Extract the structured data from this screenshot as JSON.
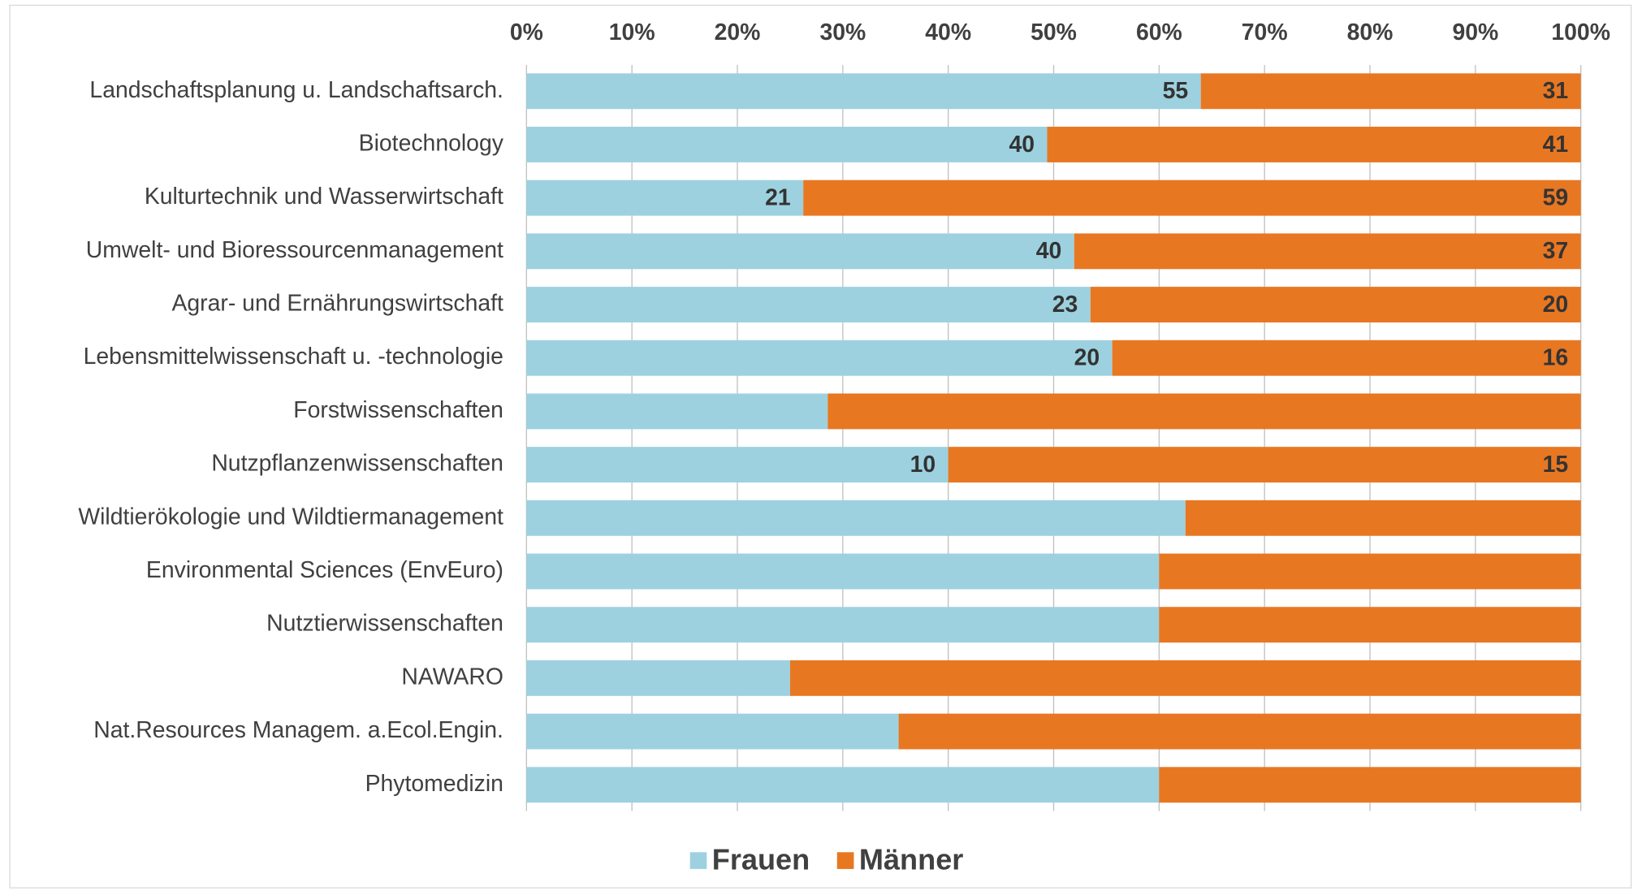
{
  "chart_data": {
    "type": "stacked_bar_100_horizontal",
    "categories": [
      "Landschaftsplanung u. Landschaftsarch.",
      "Biotechnology",
      "Kulturtechnik und Wasserwirtschaft",
      "Umwelt- und Bioressourcenmanagement",
      "Agrar- und Ernährungswirtschaft",
      "Lebensmittelwissenschaft u. -technologie",
      "Forstwissenschaften",
      "Nutzpflanzenwissenschaften",
      "Wildtierökologie und Wildtiermanagement",
      "Environmental Sciences (EnvEuro)",
      "Nutztierwissenschaften",
      "NAWARO",
      "Nat.Resources Managem. a.Ecol.Engin.",
      "Phytomedizin"
    ],
    "series": [
      {
        "name": "Frauen",
        "color": "#9dd1df",
        "values": [
          55,
          40,
          21,
          40,
          23,
          20,
          2,
          10,
          5,
          3,
          3,
          1,
          6,
          3
        ],
        "value_labels": [
          "55",
          "40",
          "21",
          "40",
          "23",
          "20",
          null,
          "10",
          null,
          null,
          null,
          null,
          null,
          null
        ]
      },
      {
        "name": "Männer",
        "color": "#e87722",
        "values": [
          31,
          41,
          59,
          37,
          20,
          16,
          5,
          15,
          3,
          2,
          2,
          3,
          11,
          2
        ],
        "value_labels": [
          "31",
          "41",
          "59",
          "37",
          "20",
          "16",
          null,
          "15",
          null,
          null,
          null,
          null,
          null,
          null
        ]
      }
    ],
    "xlim": [
      0,
      100
    ],
    "xticks": [
      {
        "value": 0,
        "label": "0%"
      },
      {
        "value": 10,
        "label": "10%"
      },
      {
        "value": 20,
        "label": "20%"
      },
      {
        "value": 30,
        "label": "30%"
      },
      {
        "value": 40,
        "label": "40%"
      },
      {
        "value": 50,
        "label": "50%"
      },
      {
        "value": 60,
        "label": "60%"
      },
      {
        "value": 70,
        "label": "70%"
      },
      {
        "value": 80,
        "label": "80%"
      },
      {
        "value": 90,
        "label": "90%"
      },
      {
        "value": 100,
        "label": "100%"
      }
    ],
    "grid": true,
    "legend": "bottom"
  }
}
